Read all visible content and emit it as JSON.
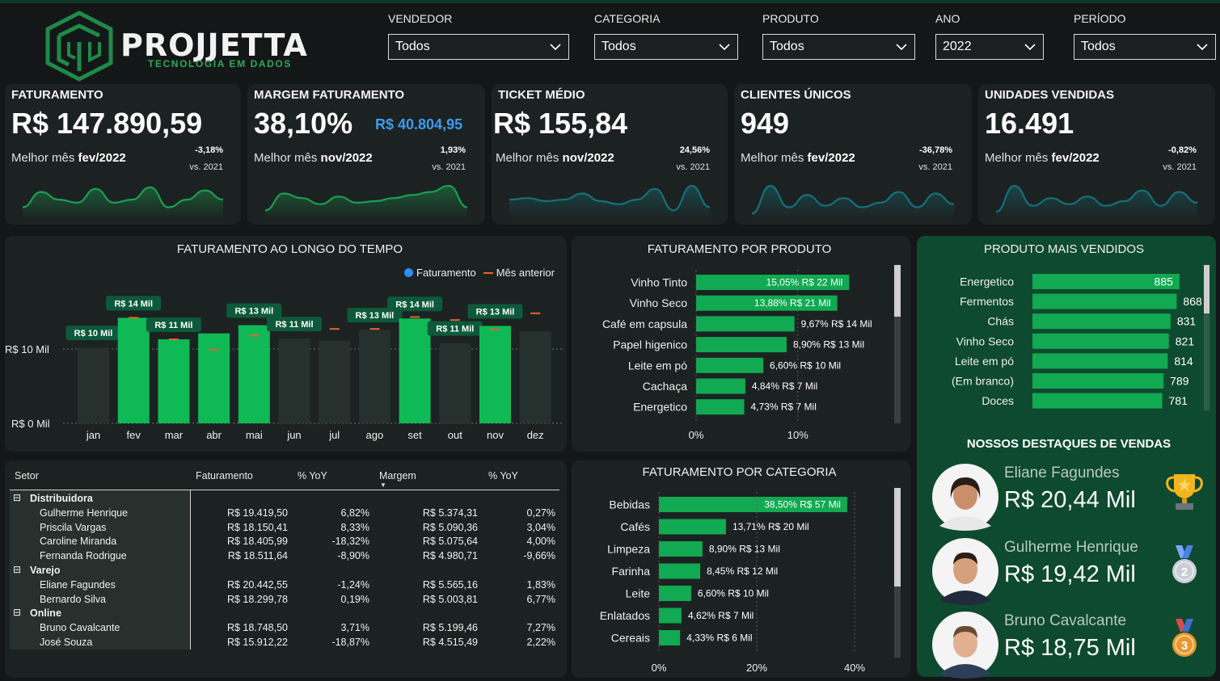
{
  "logo": {
    "name": "PROJJETTA",
    "tagline": "TECNOLOGIA EM DADOS"
  },
  "filters": [
    {
      "label": "VENDEDOR",
      "value": "Todos"
    },
    {
      "label": "CATEGORIA",
      "value": "Todos"
    },
    {
      "label": "PRODUTO",
      "value": "Todos"
    },
    {
      "label": "ANO",
      "value": "2022"
    },
    {
      "label": "PERÍODO",
      "value": "Todos"
    }
  ],
  "kpis": [
    {
      "title": "FATURAMENTO",
      "value": "R$ 147.890,59",
      "best_prefix": "Melhor mês ",
      "best_month": "fev/2022",
      "delta": "-3,18%",
      "vs": "vs. 2021",
      "spark": [
        0.3,
        0.8,
        0.55,
        0.45,
        0.9,
        0.45,
        0.55,
        0.95,
        0.3,
        0.55,
        0.85,
        0.55
      ],
      "color": "#1a9e52"
    },
    {
      "title": "MARGEM FATURAMENTO",
      "value": "38,10%",
      "extra": "R$ 40.804,95",
      "best_prefix": "Melhor mês ",
      "best_month": "nov/2022",
      "delta": "1,93%",
      "vs": "vs. 2021",
      "spark": [
        0.2,
        0.75,
        0.6,
        0.4,
        0.65,
        0.45,
        0.5,
        0.6,
        0.7,
        0.8,
        1.0,
        0.3
      ],
      "color": "#1a9e52"
    },
    {
      "title": "TICKET MÉDIO",
      "value": "R$ 155,84",
      "best_prefix": "Melhor mês ",
      "best_month": "nov/2022",
      "delta": "24,56%",
      "vs": "vs. 2021",
      "spark": [
        0.55,
        0.6,
        0.5,
        0.55,
        0.75,
        0.5,
        0.4,
        0.55,
        0.9,
        0.2,
        1.0,
        0.3
      ],
      "color": "#16707a"
    },
    {
      "title": "CLIENTES ÚNICOS",
      "value": "949",
      "best_prefix": "Melhor mês ",
      "best_month": "fev/2022",
      "delta": "-36,78%",
      "vs": "vs. 2021",
      "spark": [
        0.1,
        1.0,
        0.3,
        0.7,
        0.35,
        0.6,
        0.3,
        0.45,
        0.8,
        0.3,
        0.75,
        0.4
      ],
      "color": "#16707a"
    },
    {
      "title": "UNIDADES VENDIDAS",
      "value": "16.491",
      "best_prefix": "Melhor mês ",
      "best_month": "fev/2022",
      "delta": "-0,82%",
      "vs": "vs. 2021",
      "spark": [
        0.15,
        1.0,
        0.35,
        0.6,
        0.4,
        0.65,
        0.35,
        0.5,
        0.85,
        0.35,
        0.8,
        0.45
      ],
      "color": "#16707a"
    }
  ],
  "time_chart": {
    "title": "FATURAMENTO AO LONGO DO TEMPO",
    "legend_current": "Faturamento",
    "legend_previous": "Mês anterior",
    "y_ref_label": "R$ 10 Mil",
    "y_zero_label": "R$ 0 Mil"
  },
  "product_chart": {
    "title": "FATURAMENTO POR PRODUTO",
    "ticks": [
      "0%",
      "10%"
    ]
  },
  "category_chart": {
    "title": "FATURAMENTO POR CATEGORIA",
    "ticks": [
      "0%",
      "20%",
      "40%"
    ]
  },
  "top_products": {
    "title": "PRODUTO MAIS VENDIDOS"
  },
  "highlights": {
    "title": "NOSSOS DESTAQUES DE VENDAS",
    "people": [
      {
        "name": "Eliane Fagundes",
        "value": "R$ 20,44 Mil",
        "medal": "trophy-icon"
      },
      {
        "name": "Gulherme Henrique",
        "value": "R$ 19,42 Mil",
        "medal": "silver-medal-icon",
        "rank": "2"
      },
      {
        "name": "Bruno Cavalcante",
        "value": "R$ 18,75 Mil",
        "medal": "bronze-medal-icon",
        "rank": "3"
      }
    ]
  },
  "table": {
    "headers": [
      "Setor",
      "Faturamento",
      "% YoY",
      "Margem",
      "% YoY"
    ],
    "groups": [
      {
        "name": "Distribuidora",
        "collapse": "⊟",
        "rows": [
          [
            "Gulherme Henrique",
            "R$ 19.419,50",
            "6,82%",
            "R$ 5.374,31",
            "0,27%"
          ],
          [
            "Priscila Vargas",
            "R$ 18.150,41",
            "8,33%",
            "R$ 5.090,36",
            "3,04%"
          ],
          [
            "Caroline Miranda",
            "R$ 18.405,99",
            "-18,32%",
            "R$ 5.075,64",
            "4,00%"
          ],
          [
            "Fernanda Rodrigue",
            "R$ 18.511,64",
            "-8,90%",
            "R$ 4.980,71",
            "-9,66%"
          ]
        ]
      },
      {
        "name": "Varejo",
        "collapse": "⊟",
        "rows": [
          [
            "Eliane Fagundes",
            "R$ 20.442,55",
            "-1,24%",
            "R$ 5.565,16",
            "1,83%"
          ],
          [
            "Bernardo Silva",
            "R$ 18.299,78",
            "0,19%",
            "R$ 5.003,81",
            "6,77%"
          ]
        ]
      },
      {
        "name": "Online",
        "collapse": "⊟",
        "rows": [
          [
            "Bruno Cavalcante",
            "R$ 18.748,50",
            "3,71%",
            "R$ 5.199,46",
            "7,27%"
          ],
          [
            "José Souza",
            "R$ 15.912,22",
            "-18,87%",
            "R$ 4.515,49",
            "2,22%"
          ]
        ]
      }
    ]
  },
  "chart_data": [
    {
      "type": "bar",
      "title": "FATURAMENTO AO LONGO DO TEMPO",
      "categories": [
        "jan",
        "fev",
        "mar",
        "abr",
        "mai",
        "jun",
        "jul",
        "ago",
        "set",
        "out",
        "nov",
        "dez"
      ],
      "series": [
        {
          "name": "Faturamento",
          "values": [
            10.2,
            14.2,
            11.3,
            12.1,
            13.2,
            11.4,
            11.1,
            12.6,
            14.1,
            10.8,
            13.1,
            12.4
          ]
        },
        {
          "name": "Mês anterior",
          "values": [
            null,
            14.2,
            11.3,
            9.9,
            11.8,
            null,
            12.7,
            12.7,
            14.3,
            13.9,
            12.6,
            14.8
          ]
        }
      ],
      "value_labels": [
        "R$ 10 Mil",
        "R$ 14 Mil",
        "R$ 11 Mil",
        "",
        "R$ 13 Mil",
        "R$ 11 Mil",
        "",
        "R$ 13 Mil",
        "R$ 14 Mil",
        "R$ 11 Mil",
        "R$ 13 Mil",
        ""
      ],
      "highlighted": [
        false,
        true,
        true,
        true,
        true,
        false,
        false,
        false,
        true,
        false,
        true,
        false
      ],
      "ylim": [
        0,
        16
      ],
      "colors": {
        "highlight": "#0fb956",
        "normal": "#26302c",
        "previous": "#e8642c",
        "label_bg": "#0c5a3b"
      }
    },
    {
      "type": "bar",
      "title": "FATURAMENTO POR PRODUTO",
      "categories": [
        "Vinho Tinto",
        "Vinho Seco",
        "Café em capsula",
        "Papel higenico",
        "Leite em pó",
        "Cachaça",
        "Energetico"
      ],
      "values": [
        15.05,
        13.88,
        9.67,
        8.9,
        6.6,
        4.84,
        4.73
      ],
      "labels": [
        "15,05% R$ 22 Mil",
        "13,88% R$ 21 Mil",
        "9,67% R$ 14 Mil",
        "8,90% R$ 13 Mil",
        "6,60% R$ 10 Mil",
        "4,84% R$ 7 Mil",
        "4,73% R$ 7 Mil"
      ],
      "xlim": [
        0,
        15.5
      ]
    },
    {
      "type": "bar",
      "title": "FATURAMENTO POR CATEGORIA",
      "categories": [
        "Bebidas",
        "Cafés",
        "Limpeza",
        "Farinha",
        "Leite",
        "Enlatados",
        "Cereais"
      ],
      "values": [
        38.5,
        13.71,
        8.9,
        8.45,
        6.6,
        4.62,
        4.33
      ],
      "labels": [
        "38,50% R$ 57 Mil",
        "13,71% R$ 20 Mil",
        "8,90% R$ 13 Mil",
        "8,45% R$ 12 Mil",
        "6,60% R$ 10 Mil",
        "4,62% R$ 7 Mil",
        "4,33% R$ 6 Mil"
      ],
      "xlim": [
        0,
        40
      ]
    },
    {
      "type": "bar",
      "title": "PRODUTO MAIS VENDIDOS",
      "categories": [
        "Energetico",
        "Fermentos",
        "Chás",
        "Vinho Seco",
        "Leite em pó",
        "(Em branco)",
        "Doces"
      ],
      "values": [
        885,
        868,
        831,
        821,
        814,
        789,
        781
      ],
      "xlim": [
        0,
        900
      ]
    }
  ]
}
